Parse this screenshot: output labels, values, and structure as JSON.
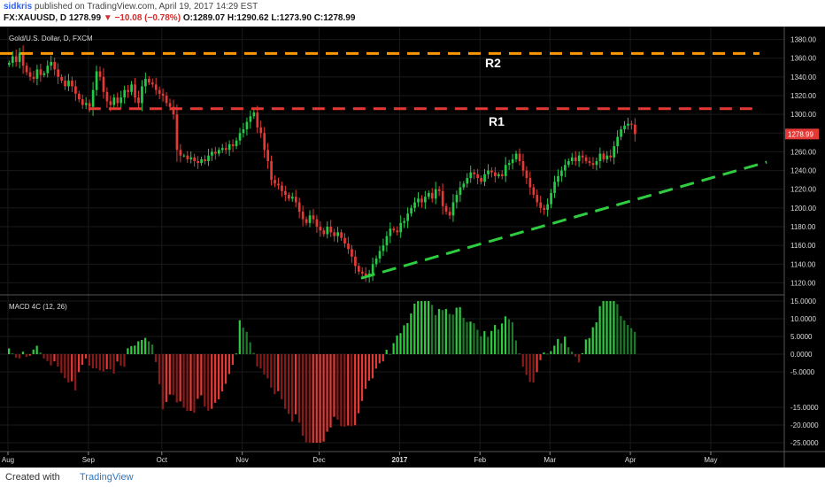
{
  "header": {
    "user": "sidkris",
    "published": "published on TradingView.com, April 19, 2017 14:29 EST",
    "symbol": "FX:XAUUSD, D",
    "price": "1278.99",
    "change": "−10.08 (−0.78%)",
    "ohlc": "O:1289.07 H:1290.62 L:1273.90 C:1278.99"
  },
  "footer": {
    "created_with": "Created with",
    "brand": "TradingView"
  },
  "chart_data": [
    {
      "type": "candlestick",
      "title": "Gold/U.S. Dollar, D, FXCM",
      "ylim": [
        1110,
        1390
      ],
      "yticks": [
        "1380.00",
        "1360.00",
        "1340.00",
        "1320.00",
        "1300.00",
        "1280.00",
        "1260.00",
        "1240.00",
        "1220.00",
        "1200.00",
        "1180.00",
        "1160.00",
        "1140.00",
        "1120.00"
      ],
      "ytick_values": [
        1380,
        1360,
        1340,
        1320,
        1300,
        1280,
        1260,
        1240,
        1220,
        1200,
        1180,
        1160,
        1140,
        1120
      ],
      "last_price_label": "1278.99",
      "last_price": 1278.99,
      "xticks": [
        "Aug",
        "Sep",
        "Oct",
        "Nov",
        "Dec",
        "2017",
        "Feb",
        "Mar",
        "Apr",
        "May"
      ],
      "xtick_index": [
        0,
        23,
        44,
        67,
        89,
        112,
        135,
        155,
        178,
        201
      ],
      "closes": [
        1355,
        1362,
        1356,
        1366,
        1352,
        1345,
        1340,
        1338,
        1348,
        1342,
        1344,
        1352,
        1356,
        1348,
        1340,
        1336,
        1330,
        1336,
        1330,
        1322,
        1316,
        1310,
        1312,
        1308,
        1326,
        1346,
        1340,
        1324,
        1314,
        1310,
        1318,
        1312,
        1318,
        1326,
        1324,
        1332,
        1318,
        1312,
        1330,
        1338,
        1334,
        1332,
        1326,
        1322,
        1320,
        1312,
        1308,
        1300,
        1262,
        1256,
        1256,
        1252,
        1254,
        1250,
        1248,
        1252,
        1250,
        1256,
        1260,
        1258,
        1262,
        1264,
        1262,
        1268,
        1266,
        1272,
        1280,
        1284,
        1292,
        1298,
        1302,
        1286,
        1280,
        1262,
        1250,
        1230,
        1226,
        1224,
        1218,
        1214,
        1210,
        1212,
        1206,
        1196,
        1188,
        1184,
        1192,
        1188,
        1180,
        1176,
        1172,
        1180,
        1174,
        1170,
        1174,
        1168,
        1162,
        1156,
        1148,
        1138,
        1132,
        1130,
        1126,
        1130,
        1140,
        1146,
        1154,
        1160,
        1170,
        1178,
        1176,
        1174,
        1184,
        1186,
        1194,
        1200,
        1206,
        1210,
        1206,
        1212,
        1216,
        1210,
        1220,
        1218,
        1202,
        1196,
        1192,
        1206,
        1214,
        1222,
        1226,
        1232,
        1238,
        1236,
        1232,
        1228,
        1236,
        1240,
        1238,
        1234,
        1236,
        1234,
        1246,
        1248,
        1252,
        1258,
        1250,
        1240,
        1232,
        1222,
        1214,
        1206,
        1200,
        1198,
        1204,
        1216,
        1228,
        1234,
        1240,
        1246,
        1250,
        1254,
        1250,
        1256,
        1254,
        1250,
        1248,
        1246,
        1250,
        1258,
        1252,
        1256,
        1254,
        1266,
        1276,
        1284,
        1288,
        1290,
        1289,
        1279
      ],
      "resistance_lines": [
        {
          "name": "R2",
          "level": 1365,
          "color": "#ff9800"
        },
        {
          "name": "R1",
          "level": 1306,
          "color": "#e53935"
        }
      ],
      "trendline": {
        "color": "#2ecc40",
        "from": {
          "index": 101,
          "price": 1125
        },
        "to": {
          "index": 217,
          "price": 1249
        }
      }
    },
    {
      "type": "bar",
      "title": "MACD 4C (12, 26)",
      "ylim": [
        -27,
        16
      ],
      "yticks": [
        "15.0000",
        "10.0000",
        "5.0000",
        "0.0000",
        "-5.0000",
        "-15.0000",
        "-20.0000",
        "-25.0000"
      ],
      "ytick_values": [
        15,
        10,
        5,
        0,
        -5,
        -15,
        -20,
        -25
      ]
    }
  ],
  "colors": {
    "up": "#26c948",
    "down": "#e53935",
    "background": "#000000",
    "grid": "#1a1a1a"
  }
}
